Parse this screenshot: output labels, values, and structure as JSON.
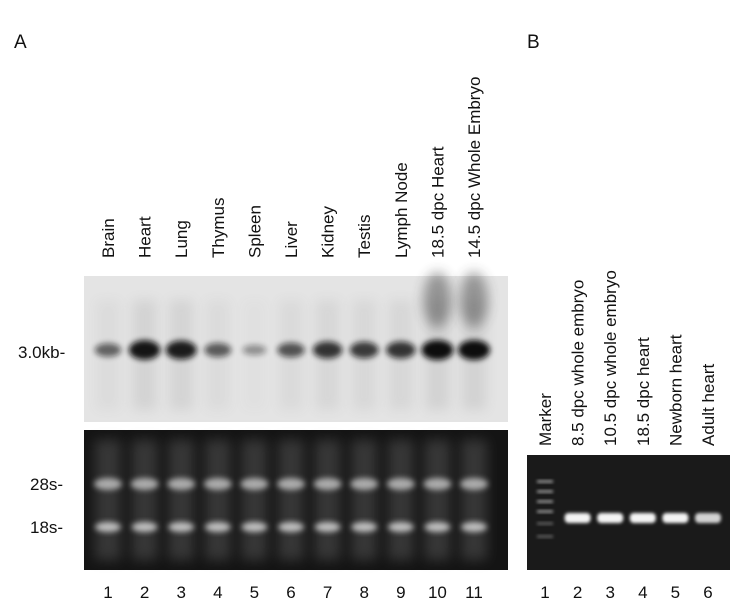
{
  "panel_a": {
    "label": "A",
    "lanes": [
      "Brain",
      "Heart",
      "Lung",
      "Thymus",
      "Spleen",
      "Liver",
      "Kidney",
      "Testis",
      "Lymph Node",
      "18.5 dpc Heart",
      "14.5 dpc Whole Embryo"
    ],
    "markers": [
      "3.0kb-",
      "28s-",
      "18s-"
    ],
    "lane_numbers": [
      "1",
      "2",
      "3",
      "4",
      "5",
      "6",
      "7",
      "8",
      "9",
      "10",
      "11"
    ]
  },
  "panel_b": {
    "label": "B",
    "lanes": [
      "Marker",
      "8.5 dpc whole embryo",
      "10.5 dpc whole embryo",
      "18.5 dpc heart",
      "Newborn heart",
      "Adult heart"
    ],
    "lane_numbers": [
      "1",
      "2",
      "3",
      "4",
      "5",
      "6"
    ]
  }
}
